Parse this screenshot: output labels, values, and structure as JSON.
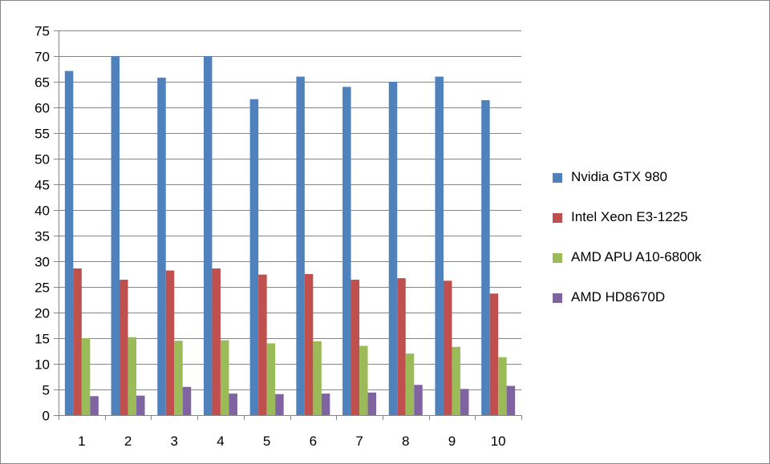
{
  "chart_data": {
    "type": "bar",
    "title": "",
    "xlabel": "",
    "ylabel": "",
    "categories": [
      "1",
      "2",
      "3",
      "4",
      "5",
      "6",
      "7",
      "8",
      "9",
      "10"
    ],
    "ylim": [
      0,
      75
    ],
    "yticks": [
      "0",
      "5",
      "10",
      "15",
      "20",
      "25",
      "30",
      "35",
      "40",
      "45",
      "50",
      "55",
      "60",
      "65",
      "70",
      "75"
    ],
    "grid": true,
    "legend_position": "right",
    "series": [
      {
        "name": "Nvidia GTX 980",
        "color": "#4f81bd",
        "values": [
          67.1,
          70.0,
          65.8,
          70.0,
          61.6,
          66.0,
          64.0,
          65.0,
          66.0,
          61.4
        ]
      },
      {
        "name": "Intel Xeon E3-1225",
        "color": "#c0504d",
        "values": [
          28.6,
          26.4,
          28.2,
          28.6,
          27.4,
          27.5,
          26.4,
          26.7,
          26.2,
          23.7
        ]
      },
      {
        "name": "AMD APU A10-6800k",
        "color": "#9bbb59",
        "values": [
          15.0,
          15.2,
          14.5,
          14.6,
          14.0,
          14.4,
          13.5,
          12.0,
          13.3,
          11.3
        ]
      },
      {
        "name": "AMD HD8670D",
        "color": "#8064a2",
        "values": [
          3.7,
          3.8,
          5.5,
          4.2,
          4.1,
          4.2,
          4.4,
          5.9,
          5.1,
          5.7
        ]
      }
    ]
  }
}
